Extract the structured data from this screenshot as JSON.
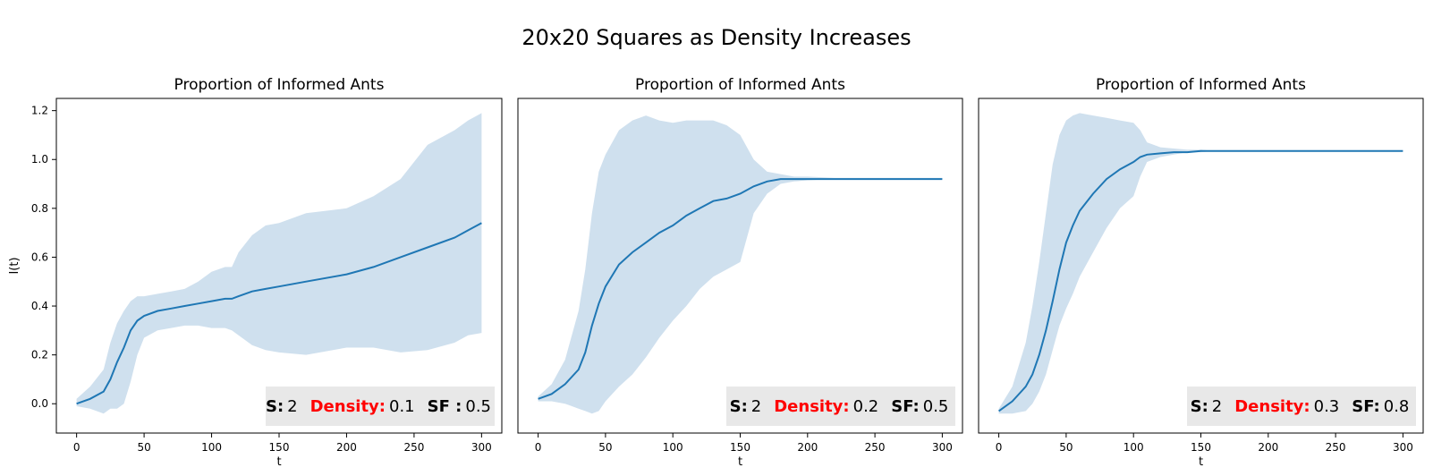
{
  "figure": {
    "title": "20x20 Squares as Density Increases"
  },
  "colors": {
    "line": "#1f77b4",
    "band": "#cfe0ee",
    "density_label": "#ff0000",
    "info_box": "#e8e8e8"
  },
  "chart_data": [
    {
      "type": "line",
      "title": "Proportion of Informed Ants",
      "xlabel": "t",
      "ylabel": "I(t)",
      "xlim": [
        -15,
        315
      ],
      "ylim": [
        -0.12,
        1.25
      ],
      "xticks": [
        0,
        50,
        100,
        150,
        200,
        250,
        300
      ],
      "yticks": [
        0.0,
        0.2,
        0.4,
        0.6,
        0.8,
        1.0,
        1.2
      ],
      "yticklabels": [
        "0.0",
        "0.2",
        "0.4",
        "0.6",
        "0.8",
        "1.0",
        "1.2"
      ],
      "info": {
        "s_label": "S:",
        "s_value": "2",
        "density_label": "Density:",
        "density_value": "0.1",
        "sf_label": "SF :",
        "sf_value": "0.5"
      },
      "series": [
        {
          "x": [
            0,
            10,
            20,
            25,
            30,
            35,
            40,
            45,
            50,
            60,
            70,
            80,
            90,
            100,
            110,
            115,
            120,
            130,
            140,
            150,
            170,
            200,
            220,
            240,
            260,
            280,
            290,
            300
          ],
          "mean": [
            0.0,
            0.02,
            0.05,
            0.1,
            0.17,
            0.23,
            0.3,
            0.34,
            0.36,
            0.38,
            0.39,
            0.4,
            0.41,
            0.42,
            0.43,
            0.43,
            0.44,
            0.46,
            0.47,
            0.48,
            0.5,
            0.53,
            0.56,
            0.6,
            0.64,
            0.68,
            0.71,
            0.74
          ],
          "upper": [
            0.02,
            0.07,
            0.14,
            0.25,
            0.33,
            0.38,
            0.42,
            0.44,
            0.44,
            0.45,
            0.46,
            0.47,
            0.5,
            0.54,
            0.56,
            0.56,
            0.62,
            0.69,
            0.73,
            0.74,
            0.78,
            0.8,
            0.85,
            0.92,
            1.06,
            1.12,
            1.16,
            1.19
          ],
          "lower": [
            -0.01,
            -0.02,
            -0.04,
            -0.02,
            -0.02,
            0.0,
            0.09,
            0.2,
            0.27,
            0.3,
            0.31,
            0.32,
            0.32,
            0.31,
            0.31,
            0.3,
            0.28,
            0.24,
            0.22,
            0.21,
            0.2,
            0.23,
            0.23,
            0.21,
            0.22,
            0.25,
            0.28,
            0.29
          ]
        }
      ]
    },
    {
      "type": "line",
      "title": "Proportion of Informed Ants",
      "xlabel": "t",
      "ylabel": "",
      "xlim": [
        -15,
        315
      ],
      "ylim": [
        -0.12,
        1.25
      ],
      "xticks": [
        0,
        50,
        100,
        150,
        200,
        250,
        300
      ],
      "yticks": [],
      "yticklabels": [],
      "info": {
        "s_label": "S:",
        "s_value": "2",
        "density_label": "Density:",
        "density_value": "0.2",
        "sf_label": "SF:",
        "sf_value": "0.5"
      },
      "series": [
        {
          "x": [
            0,
            10,
            20,
            30,
            35,
            40,
            45,
            50,
            60,
            70,
            80,
            90,
            100,
            110,
            120,
            130,
            140,
            150,
            160,
            170,
            180,
            190,
            200,
            220,
            250,
            300
          ],
          "mean": [
            0.02,
            0.04,
            0.08,
            0.14,
            0.21,
            0.32,
            0.41,
            0.48,
            0.57,
            0.62,
            0.66,
            0.7,
            0.73,
            0.77,
            0.8,
            0.83,
            0.84,
            0.86,
            0.89,
            0.91,
            0.92,
            0.92,
            0.92,
            0.92,
            0.92,
            0.92
          ],
          "upper": [
            0.03,
            0.08,
            0.18,
            0.38,
            0.55,
            0.78,
            0.95,
            1.02,
            1.12,
            1.16,
            1.18,
            1.16,
            1.15,
            1.16,
            1.16,
            1.16,
            1.14,
            1.1,
            1.0,
            0.95,
            0.94,
            0.93,
            0.93,
            0.925,
            0.925,
            0.925
          ],
          "lower": [
            0.01,
            0.01,
            0.0,
            -0.02,
            -0.03,
            -0.04,
            -0.03,
            0.01,
            0.07,
            0.12,
            0.19,
            0.27,
            0.34,
            0.4,
            0.47,
            0.52,
            0.55,
            0.58,
            0.78,
            0.86,
            0.9,
            0.91,
            0.915,
            0.92,
            0.92,
            0.92
          ]
        }
      ]
    },
    {
      "type": "line",
      "title": "Proportion of Informed Ants",
      "xlabel": "t",
      "ylabel": "",
      "xlim": [
        -15,
        315
      ],
      "ylim": [
        -0.12,
        1.25
      ],
      "xticks": [
        0,
        50,
        100,
        150,
        200,
        250,
        300
      ],
      "yticks": [],
      "yticklabels": [],
      "info": {
        "s_label": "S:",
        "s_value": "2",
        "density_label": "Density:",
        "density_value": "0.3",
        "sf_label": "SF:",
        "sf_value": "0.8"
      },
      "series": [
        {
          "x": [
            0,
            10,
            20,
            25,
            30,
            35,
            40,
            45,
            50,
            55,
            60,
            70,
            80,
            90,
            100,
            105,
            110,
            120,
            130,
            140,
            150,
            160,
            180,
            200,
            250,
            300
          ],
          "mean": [
            -0.03,
            0.01,
            0.07,
            0.12,
            0.2,
            0.3,
            0.42,
            0.55,
            0.66,
            0.73,
            0.79,
            0.86,
            0.92,
            0.96,
            0.99,
            1.01,
            1.02,
            1.025,
            1.03,
            1.03,
            1.035,
            1.035,
            1.035,
            1.035,
            1.035,
            1.035
          ],
          "upper": [
            -0.02,
            0.07,
            0.25,
            0.4,
            0.58,
            0.78,
            0.98,
            1.1,
            1.16,
            1.18,
            1.19,
            1.18,
            1.17,
            1.16,
            1.15,
            1.12,
            1.07,
            1.05,
            1.045,
            1.04,
            1.04,
            1.035,
            1.035,
            1.035,
            1.035,
            1.035
          ],
          "lower": [
            -0.04,
            -0.04,
            -0.03,
            0.0,
            0.05,
            0.12,
            0.22,
            0.32,
            0.39,
            0.45,
            0.52,
            0.62,
            0.72,
            0.8,
            0.85,
            0.93,
            0.99,
            1.01,
            1.02,
            1.03,
            1.03,
            1.035,
            1.035,
            1.035,
            1.035,
            1.035
          ]
        }
      ]
    }
  ]
}
